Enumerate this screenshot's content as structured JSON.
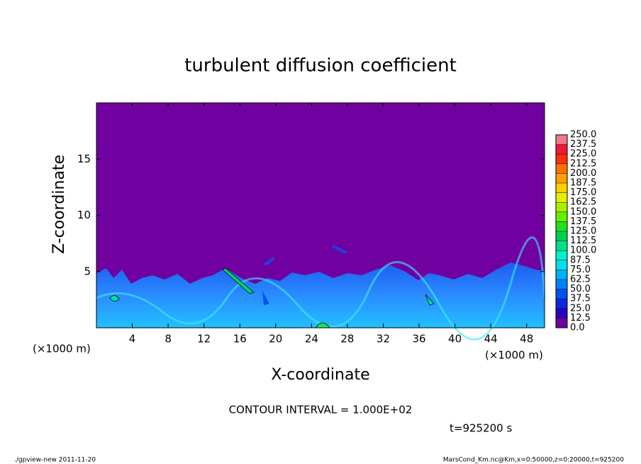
{
  "chart_data": {
    "type": "contour",
    "title": "turbulent diffusion coefficient",
    "xlabel": "X-coordinate",
    "ylabel": "Z-coordinate",
    "x_unit_labels": [
      "(×1000 m)",
      "(×1000 m)"
    ],
    "xlim": [
      0,
      50
    ],
    "xticks": [
      4,
      8,
      12,
      16,
      20,
      24,
      28,
      32,
      36,
      40,
      44,
      48
    ],
    "ylim": [
      0,
      20
    ],
    "yticks": [
      5,
      10,
      15
    ],
    "levels": [
      {
        "value": 0,
        "label": "0.0"
      },
      12.5,
      {
        "value": 25,
        "label": "25.0"
      },
      37.5,
      {
        "value": 50,
        "label": "50.0"
      },
      62.5,
      {
        "value": 75,
        "label": "75.0"
      },
      87.5,
      {
        "value": 100,
        "label": "100.0"
      },
      112.5,
      {
        "value": 125,
        "label": "125.0"
      },
      137.5,
      {
        "value": 150,
        "label": "150.0"
      },
      162.5,
      {
        "value": 175,
        "label": "175.0"
      },
      187.5,
      {
        "value": 200,
        "label": "200.0"
      },
      212.5,
      {
        "value": 225,
        "label": "225.0"
      },
      237.5,
      {
        "value": 250,
        "label": "250.0"
      }
    ],
    "level_colors": [
      "#7000a0",
      "#2a00c0",
      "#0828e0",
      "#0050f0",
      "#0080ff",
      "#00b0ff",
      "#00dff0",
      "#00f0c8",
      "#00e088",
      "#00d050",
      "#20e020",
      "#60f000",
      "#a8f000",
      "#e0f000",
      "#ffd000",
      "#ffa000",
      "#ff7000",
      "#ff3010",
      "#f01838",
      "#f07888"
    ],
    "contour_interval": "CONTOUR INTERVAL = 1.000E+02",
    "time_label": "t=925200 s",
    "footer_left": "./gpview-new   2011-11-20",
    "footer_right": "MarsCond_Km.nc@Km,x=0:50000,z=0:20000,t=925200"
  }
}
